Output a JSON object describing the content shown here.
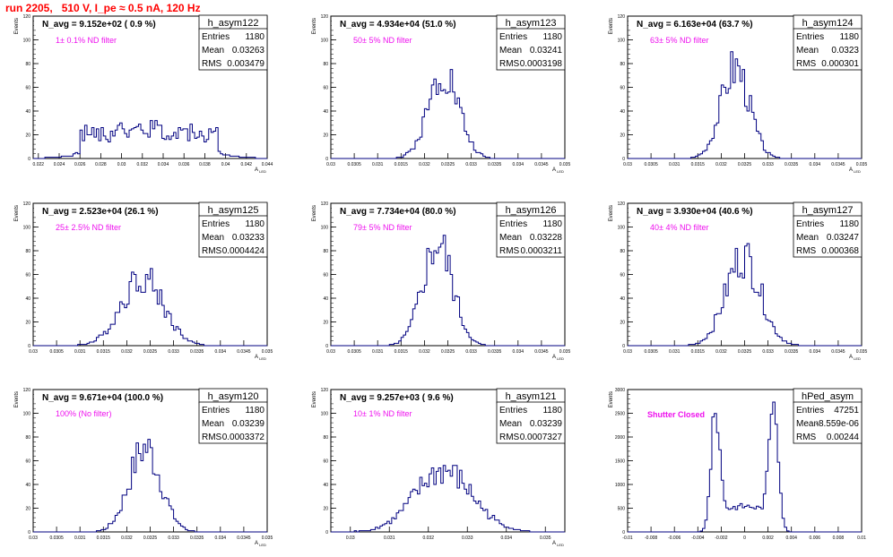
{
  "run_title": "run 2205,   510 V, I_pe ≈ 0.5 nA, 120 Hz",
  "colors": {
    "title": "#ff0000",
    "filter_text": "#ee11ee",
    "histogram": "#000080",
    "axis": "#000000"
  },
  "y_axis_label": "Events",
  "chart_data": [
    {
      "type": "bar",
      "name": "h_asym122",
      "navg": "N_avg = 9.152e+02 ( 0.9 %)",
      "filter": "1± 0.1% ND filter",
      "stats": [
        [
          "Entries",
          "1180"
        ],
        [
          "Mean",
          "0.03263"
        ],
        [
          "RMS",
          "0.003479"
        ]
      ],
      "xlabel": "A_{LED}",
      "ylabel": "Events",
      "xlim": [
        0.0215,
        0.044
      ],
      "ylim": [
        0,
        120
      ],
      "xticks": [
        "0.022",
        "0.024",
        "0.026",
        "0.028",
        "0.03",
        "0.032",
        "0.034",
        "0.036",
        "0.038",
        "0.04",
        "0.042",
        "0.044"
      ],
      "xtick_values": [
        0.022,
        0.024,
        0.026,
        0.028,
        0.03,
        0.032,
        0.034,
        0.036,
        0.038,
        0.04,
        0.042,
        0.044
      ],
      "yticks": [
        0,
        20,
        40,
        60,
        80,
        100,
        120
      ],
      "shape": {
        "kind": "hist",
        "mean": 0.03263,
        "rms": 0.003479,
        "peak": 33,
        "bins": 100,
        "seed": 1
      }
    },
    {
      "type": "bar",
      "name": "h_asym123",
      "navg": "N_avg = 4.934e+04 (51.0 %)",
      "filter": "50± 5% ND filter",
      "stats": [
        [
          "Entries",
          "1180"
        ],
        [
          "Mean",
          "0.03241"
        ],
        [
          "RMS",
          "0.0003198"
        ]
      ],
      "xlabel": "A_{LED}",
      "ylabel": "Events",
      "xlim": [
        0.03,
        0.035
      ],
      "ylim": [
        0,
        120
      ],
      "xticks": [
        "0.03",
        "0.0305",
        "0.031",
        "0.0315",
        "0.032",
        "0.0325",
        "0.033",
        "0.0335",
        "0.034",
        "0.0345",
        "0.035"
      ],
      "xtick_values": [
        0.03,
        0.0305,
        0.031,
        0.0315,
        0.032,
        0.0325,
        0.033,
        0.0335,
        0.034,
        0.0345,
        0.035
      ],
      "yticks": [
        0,
        20,
        40,
        60,
        80,
        100,
        120
      ],
      "shape": {
        "kind": "hist",
        "mean": 0.03241,
        "rms": 0.0003198,
        "peak": 77,
        "bins": 100,
        "seed": 2
      }
    },
    {
      "type": "bar",
      "name": "h_asym124",
      "navg": "N_avg = 6.163e+04 (63.7 %)",
      "filter": "63± 5% ND filter",
      "stats": [
        [
          "Entries",
          "1180"
        ],
        [
          "Mean",
          "0.0323"
        ],
        [
          "RMS",
          "0.000301"
        ]
      ],
      "xlabel": "A_{LED}",
      "ylabel": "Events",
      "xlim": [
        0.03,
        0.035
      ],
      "ylim": [
        0,
        120
      ],
      "xticks": [
        "0.03",
        "0.0305",
        "0.031",
        "0.0315",
        "0.032",
        "0.0325",
        "0.033",
        "0.0335",
        "0.034",
        "0.0345",
        "0.035"
      ],
      "xtick_values": [
        0.03,
        0.0305,
        0.031,
        0.0315,
        0.032,
        0.0325,
        0.033,
        0.0335,
        0.034,
        0.0345,
        0.035
      ],
      "yticks": [
        0,
        20,
        40,
        60,
        80,
        100,
        120
      ],
      "shape": {
        "kind": "hist",
        "mean": 0.0323,
        "rms": 0.000301,
        "peak": 80,
        "bins": 100,
        "seed": 3
      }
    },
    {
      "type": "bar",
      "name": "h_asym125",
      "navg": "N_avg = 2.523e+04 (26.1 %)",
      "filter": "25± 2.5% ND filter",
      "stats": [
        [
          "Entries",
          "1180"
        ],
        [
          "Mean",
          "0.03233"
        ],
        [
          "RMS",
          "0.0004424"
        ]
      ],
      "xlabel": "A_{LED}",
      "ylabel": "Events",
      "xlim": [
        0.03,
        0.035
      ],
      "ylim": [
        0,
        120
      ],
      "xticks": [
        "0.03",
        "0.0305",
        "0.031",
        "0.0315",
        "0.032",
        "0.0325",
        "0.033",
        "0.0335",
        "0.034",
        "0.0345",
        "0.035"
      ],
      "xtick_values": [
        0.03,
        0.0305,
        0.031,
        0.0315,
        0.032,
        0.0325,
        0.033,
        0.0335,
        0.034,
        0.0345,
        0.035
      ],
      "yticks": [
        0,
        20,
        40,
        60,
        80,
        100,
        120
      ],
      "shape": {
        "kind": "hist",
        "mean": 0.03233,
        "rms": 0.0004424,
        "peak": 60,
        "bins": 100,
        "seed": 4
      }
    },
    {
      "type": "bar",
      "name": "h_asym126",
      "navg": "N_avg = 7.734e+04 (80.0 %)",
      "filter": "79± 5% ND filter",
      "stats": [
        [
          "Entries",
          "1180"
        ],
        [
          "Mean",
          "0.03228"
        ],
        [
          "RMS",
          "0.0003211"
        ]
      ],
      "xlabel": "A_{LED}",
      "ylabel": "Events",
      "xlim": [
        0.03,
        0.035
      ],
      "ylim": [
        0,
        120
      ],
      "xticks": [
        "0.03",
        "0.0305",
        "0.031",
        "0.0315",
        "0.032",
        "0.0325",
        "0.033",
        "0.0335",
        "0.034",
        "0.0345",
        "0.035"
      ],
      "xtick_values": [
        0.03,
        0.0305,
        0.031,
        0.0315,
        0.032,
        0.0325,
        0.033,
        0.0335,
        0.034,
        0.0345,
        0.035
      ],
      "yticks": [
        0,
        20,
        40,
        60,
        80,
        100,
        120
      ],
      "shape": {
        "kind": "hist",
        "mean": 0.03228,
        "rms": 0.0003211,
        "peak": 89,
        "bins": 100,
        "seed": 5
      }
    },
    {
      "type": "bar",
      "name": "h_asym127",
      "navg": "N_avg = 3.930e+04 (40.6 %)",
      "filter": "40± 4% ND filter",
      "stats": [
        [
          "Entries",
          "1180"
        ],
        [
          "Mean",
          "0.03247"
        ],
        [
          "RMS",
          "0.000368"
        ]
      ],
      "xlabel": "A_{LED}",
      "ylabel": "Events",
      "xlim": [
        0.03,
        0.035
      ],
      "ylim": [
        0,
        120
      ],
      "xticks": [
        "0.03",
        "0.0305",
        "0.031",
        "0.0315",
        "0.032",
        "0.0325",
        "0.033",
        "0.0335",
        "0.034",
        "0.0345",
        "0.035"
      ],
      "xtick_values": [
        0.03,
        0.0305,
        0.031,
        0.0315,
        0.032,
        0.0325,
        0.033,
        0.0335,
        0.034,
        0.0345,
        0.035
      ],
      "yticks": [
        0,
        20,
        40,
        60,
        80,
        100,
        120
      ],
      "shape": {
        "kind": "hist",
        "mean": 0.03247,
        "rms": 0.000368,
        "peak": 78,
        "bins": 100,
        "seed": 6
      }
    },
    {
      "type": "bar",
      "name": "h_asym120",
      "navg": "N_avg = 9.671e+04 (100.0 %)",
      "filter": "100% (No filter)",
      "stats": [
        [
          "Entries",
          "1180"
        ],
        [
          "Mean",
          "0.03239"
        ],
        [
          "RMS",
          "0.0003372"
        ]
      ],
      "xlabel": "A_{LED}",
      "ylabel": "Events",
      "xlim": [
        0.03,
        0.035
      ],
      "ylim": [
        0,
        120
      ],
      "xticks": [
        "0.03",
        "0.0305",
        "0.031",
        "0.0315",
        "0.032",
        "0.0325",
        "0.033",
        "0.0335",
        "0.034",
        "0.0345",
        "0.035"
      ],
      "xtick_values": [
        0.03,
        0.0305,
        0.031,
        0.0315,
        0.032,
        0.0325,
        0.033,
        0.0335,
        0.034,
        0.0345,
        0.035
      ],
      "yticks": [
        0,
        20,
        40,
        60,
        80,
        100,
        120
      ],
      "shape": {
        "kind": "hist",
        "mean": 0.03239,
        "rms": 0.0003372,
        "peak": 73,
        "bins": 100,
        "seed": 7
      }
    },
    {
      "type": "bar",
      "name": "h_asym121",
      "navg": "N_avg = 9.257e+03 ( 9.6 %)",
      "filter": "10± 1% ND filter",
      "stats": [
        [
          "Entries",
          "1180"
        ],
        [
          "Mean",
          "0.03239"
        ],
        [
          "RMS",
          "0.0007327"
        ]
      ],
      "xlabel": "A_{LED}",
      "ylabel": "Events",
      "xlim": [
        0.0295,
        0.0355
      ],
      "ylim": [
        0,
        120
      ],
      "xticks": [
        "0.03",
        "0.031",
        "0.032",
        "0.033",
        "0.034",
        "0.035"
      ],
      "xtick_values": [
        0.03,
        0.031,
        0.032,
        0.033,
        0.034,
        0.035
      ],
      "yticks": [
        0,
        20,
        40,
        60,
        80,
        100,
        120
      ],
      "shape": {
        "kind": "hist",
        "mean": 0.03239,
        "rms": 0.0007327,
        "peak": 53,
        "bins": 100,
        "seed": 8
      }
    },
    {
      "type": "bar",
      "name": "hPed_asym",
      "navg": "",
      "filter": "Shutter Closed",
      "stats": [
        [
          "Entries",
          "47251"
        ],
        [
          "Mean",
          "-8.559e-06"
        ],
        [
          "RMS",
          "0.00244"
        ]
      ],
      "xlabel": "",
      "ylabel": "Events",
      "xlim": [
        -0.01,
        0.01
      ],
      "ylim": [
        0,
        3000
      ],
      "xticks": [
        "-0.01",
        "-0.008",
        "-0.006",
        "-0.004",
        "-0.002",
        "0",
        "0.002",
        "0.004",
        "0.006",
        "0.008",
        "0.01"
      ],
      "xtick_values": [
        -0.01,
        -0.008,
        -0.006,
        -0.004,
        -0.002,
        0,
        0.002,
        0.004,
        0.006,
        0.008,
        0.01
      ],
      "yticks": [
        0,
        500,
        1000,
        1500,
        2000,
        2500,
        3000
      ],
      "shape": {
        "kind": "bimodal",
        "mu1": -0.0025,
        "mu2": 0.0025,
        "sigma": 0.00038,
        "peak": 2900,
        "valley": 560,
        "bins": 100,
        "seed": 9
      }
    }
  ]
}
